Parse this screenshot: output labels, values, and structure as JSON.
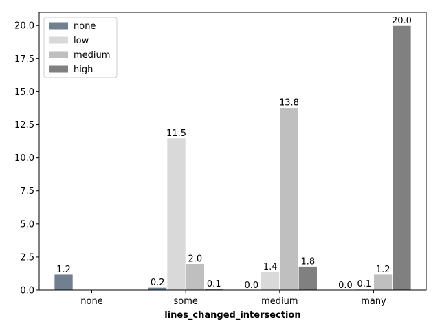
{
  "chart_data": {
    "type": "bar",
    "xlabel": "lines_changed_intersection",
    "ylabel": "",
    "categories": [
      "none",
      "some",
      "medium",
      "many"
    ],
    "ylim": [
      0,
      21
    ],
    "yticks": [
      "0.0",
      "2.5",
      "5.0",
      "7.5",
      "10.0",
      "12.5",
      "15.0",
      "17.5",
      "20.0"
    ],
    "legend_position": "top-left",
    "grid": false,
    "series": [
      {
        "name": "none",
        "color": "#708090",
        "values": [
          1.2,
          0.2,
          0.0,
          0.0
        ],
        "labels": [
          "1.2",
          "0.2",
          "0.0",
          "0.0"
        ]
      },
      {
        "name": "low",
        "color": "#d9d9d9",
        "values": [
          0,
          11.5,
          1.4,
          0.1
        ],
        "labels": [
          "",
          "11.5",
          "1.4",
          "0.1"
        ]
      },
      {
        "name": "medium",
        "color": "#bfbfbf",
        "values": [
          0,
          2.0,
          13.8,
          1.2
        ],
        "labels": [
          "",
          "2.0",
          "13.8",
          "1.2"
        ]
      },
      {
        "name": "high",
        "color": "#808080",
        "values": [
          0,
          0.1,
          1.8,
          20.0
        ],
        "labels": [
          "",
          "0.1",
          "1.8",
          "20.0"
        ]
      }
    ]
  }
}
